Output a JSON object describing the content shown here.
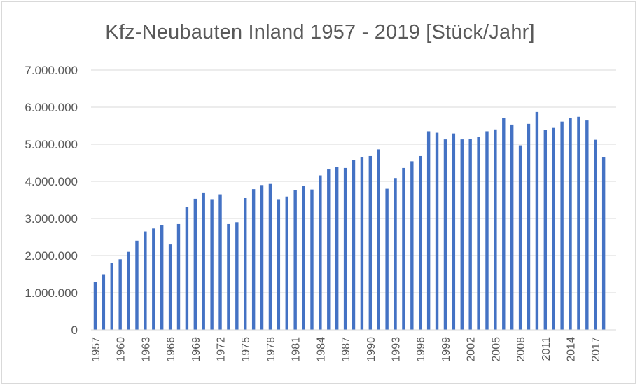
{
  "chart_data": {
    "type": "bar",
    "title": "Kfz-Neubauten Inland 1957 - 2019 [Stück/Jahr]",
    "xlabel": "",
    "ylabel": "",
    "ylim": [
      0,
      7000000
    ],
    "y_ticks": [
      0,
      1000000,
      2000000,
      3000000,
      4000000,
      5000000,
      6000000,
      7000000
    ],
    "y_tick_labels": [
      "0",
      "1.000.000",
      "2.000.000",
      "3.000.000",
      "4.000.000",
      "5.000.000",
      "6.000.000",
      "7.000.000"
    ],
    "x_tick_labels": [
      "1957",
      "1960",
      "1963",
      "1966",
      "1969",
      "1972",
      "1975",
      "1978",
      "1981",
      "1984",
      "1987",
      "1990",
      "1993",
      "1996",
      "1999",
      "2002",
      "2005",
      "2008",
      "2011",
      "2014",
      "2017"
    ],
    "grid": true,
    "bar_color": "#4472c4",
    "categories": [
      "1957",
      "1958",
      "1959",
      "1960",
      "1961",
      "1962",
      "1963",
      "1964",
      "1965",
      "1966",
      "1967",
      "1968",
      "1969",
      "1970",
      "1971",
      "1972",
      "1973",
      "1974",
      "1975",
      "1976",
      "1977",
      "1978",
      "1979",
      "1980",
      "1981",
      "1982",
      "1983",
      "1984",
      "1985",
      "1986",
      "1987",
      "1988",
      "1989",
      "1990",
      "1991",
      "1992",
      "1993",
      "1994",
      "1995",
      "1996",
      "1997",
      "1998",
      "1999",
      "2000",
      "2001",
      "2002",
      "2003",
      "2004",
      "2005",
      "2006",
      "2007",
      "2008",
      "2009",
      "2010",
      "2011",
      "2012",
      "2013",
      "2014",
      "2015",
      "2016",
      "2017",
      "2018",
      "2019"
    ],
    "values": [
      1300000,
      1500000,
      1800000,
      1900000,
      2100000,
      2400000,
      2650000,
      2730000,
      2830000,
      2300000,
      2850000,
      3310000,
      3530000,
      3700000,
      3520000,
      3650000,
      2850000,
      2900000,
      3550000,
      3790000,
      3900000,
      3930000,
      3520000,
      3590000,
      3760000,
      3880000,
      3780000,
      4160000,
      4320000,
      4380000,
      4360000,
      4570000,
      4660000,
      4680000,
      4860000,
      3800000,
      4090000,
      4360000,
      4540000,
      4680000,
      5350000,
      5310000,
      5130000,
      5290000,
      5130000,
      5150000,
      5190000,
      5350000,
      5400000,
      5700000,
      5530000,
      4970000,
      5550000,
      5870000,
      5390000,
      5440000,
      5610000,
      5700000,
      5740000,
      5640000,
      5120000,
      4660000,
      null
    ]
  }
}
